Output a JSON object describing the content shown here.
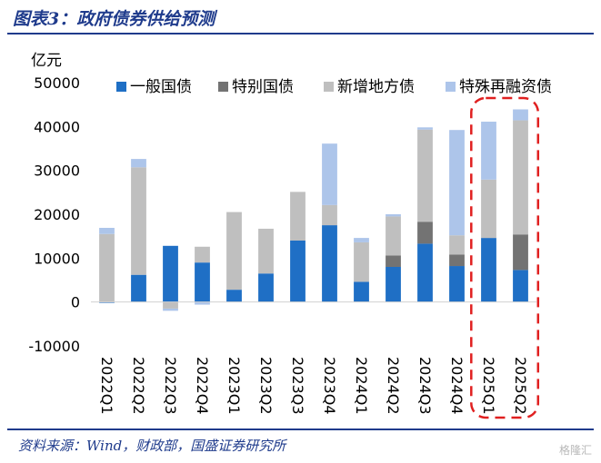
{
  "header": {
    "title": "图表3：政府债券供给预测"
  },
  "footer": {
    "source": "资料来源：Wind，财政部，国盛证券研究所",
    "watermark": "格隆汇"
  },
  "chart_data": {
    "type": "bar",
    "stacked": true,
    "ylabel": "亿元",
    "ylim": [
      -10000,
      50000
    ],
    "yticks": [
      -10000,
      0,
      10000,
      20000,
      30000,
      40000,
      50000
    ],
    "categories": [
      "2022Q1",
      "2022Q2",
      "2022Q3",
      "2022Q4",
      "2023Q1",
      "2023Q2",
      "2023Q3",
      "2023Q4",
      "2024Q1",
      "2024Q2",
      "2024Q3",
      "2024Q4",
      "2025Q1",
      "2025Q2"
    ],
    "series": [
      {
        "name": "一般国债",
        "color": "#1f6fc5",
        "values": [
          -200,
          6200,
          12800,
          9000,
          2800,
          6500,
          14000,
          17500,
          4600,
          8000,
          13300,
          8200,
          14600,
          7300
        ]
      },
      {
        "name": "特别国债",
        "color": "#737373",
        "values": [
          0,
          0,
          0,
          0,
          0,
          0,
          0,
          0,
          0,
          2600,
          5000,
          2600,
          0,
          8100
        ]
      },
      {
        "name": "新增地方债",
        "color": "#bfbfbf",
        "values": [
          15500,
          24500,
          -1500,
          3600,
          17700,
          10200,
          11100,
          4600,
          9000,
          8900,
          21000,
          4400,
          13300,
          26000
        ]
      },
      {
        "name": "特殊再融资债",
        "color": "#adc5ea",
        "values": [
          1400,
          1900,
          -500,
          -600,
          0,
          0,
          0,
          14000,
          1000,
          500,
          500,
          24000,
          13200,
          2500
        ]
      }
    ],
    "legend": "top",
    "highlight": {
      "categories": [
        "2025Q1",
        "2025Q2"
      ],
      "style": "red dashed rounded box"
    }
  }
}
